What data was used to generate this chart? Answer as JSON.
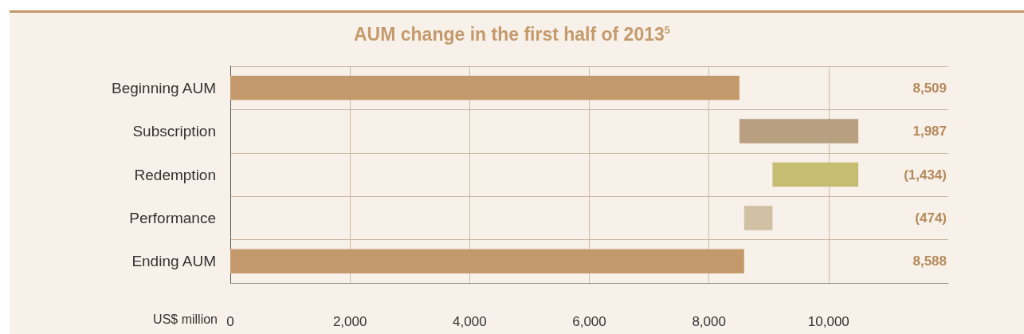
{
  "chart_data": {
    "type": "bar",
    "orientation": "horizontal",
    "title": "AUM change in the first half of 2013$^{5}$",
    "xlabel": "US$ million",
    "categories": [
      "Beginning AUM",
      "Subscription",
      "Redemption",
      "Performance",
      "Ending AUM"
    ],
    "values": [
      8509,
      1987,
      -1434,
      -474,
      8588
    ],
    "base": [
      0,
      8509,
      10496,
      9062,
      0
    ],
    "value_labels": [
      "8,509",
      "1,987",
      "(1,434)",
      "(474)",
      "8,588"
    ],
    "colors": [
      "#c49a6c",
      "#b89f80",
      "#c6bc72",
      "#d1c0a3",
      "#c49a6c"
    ],
    "xlim": [
      0,
      12000
    ],
    "xticks": [
      0,
      {
        "value": 2000,
        "label": "2,000"
      },
      {
        "value": 4000,
        "label": "4,000"
      },
      {
        "value": 6000,
        "label": "6,000"
      },
      {
        "value": 8000,
        "label": "8,000"
      },
      {
        "value": 10000,
        "label": "10,000"
      }
    ],
    "grid": true
  }
}
